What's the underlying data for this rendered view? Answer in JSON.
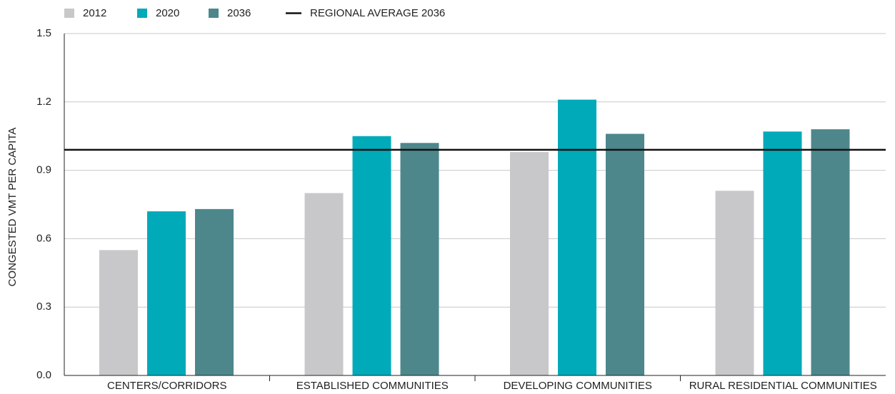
{
  "chart_data": {
    "type": "bar",
    "ylabel": "CONGESTED VMT PER CAPITA",
    "categories": [
      "CENTERS/CORRIDORS",
      "ESTABLISHED COMMUNITIES",
      "DEVELOPING COMMUNITIES",
      "RURAL RESIDENTIAL COMMUNITIES"
    ],
    "series": [
      {
        "name": "2012",
        "color": "#c8c8ca",
        "values": [
          0.55,
          0.8,
          0.98,
          0.81
        ]
      },
      {
        "name": "2020",
        "color": "#00aab9",
        "values": [
          0.72,
          1.05,
          1.21,
          1.07
        ]
      },
      {
        "name": "2036",
        "color": "#4d878c",
        "values": [
          0.73,
          1.02,
          1.06,
          1.08
        ]
      }
    ],
    "reference": {
      "name": "REGIONAL AVERAGE 2036",
      "value": 0.99,
      "color": "#111111"
    },
    "ylim": [
      0,
      1.5
    ],
    "yticks": [
      {
        "value": 0,
        "label": "0.0"
      },
      0.3,
      0.6,
      0.9,
      1.2,
      1.5
    ],
    "grid": true
  }
}
